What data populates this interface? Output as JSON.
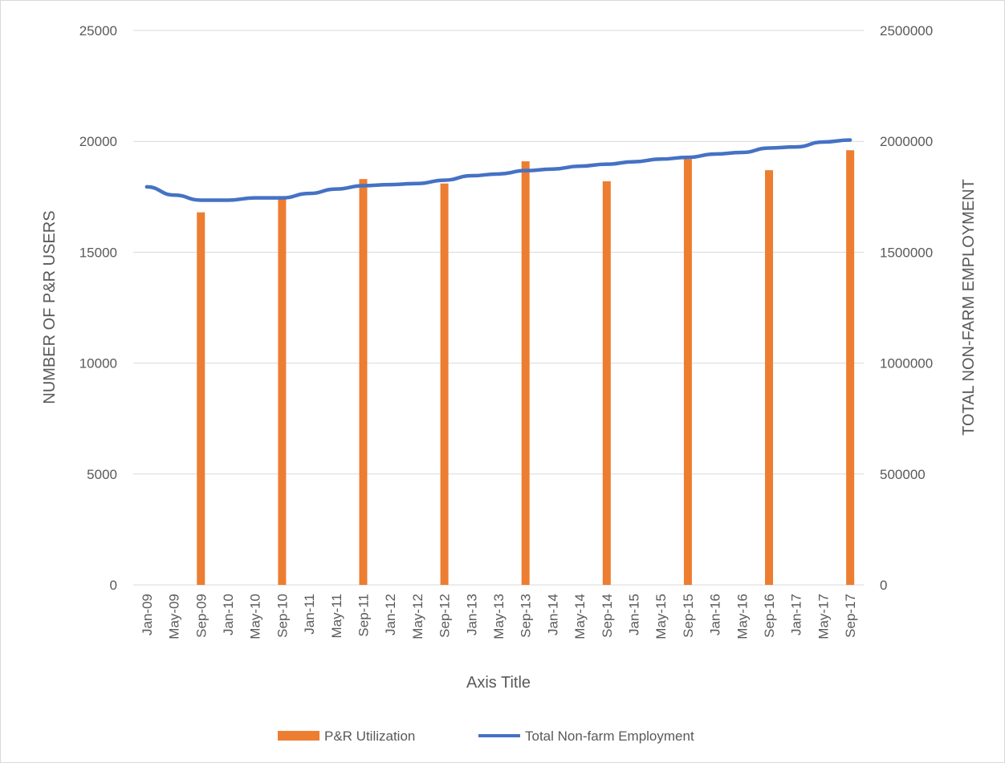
{
  "chart_data": {
    "type": "bar+line",
    "title": "",
    "xlabel": "Axis Title",
    "ylabel": "NUMBER OF P&R USERS",
    "y2label": "TOTAL NON-FARM EMPLOYMENT",
    "ylim": [
      0,
      25000
    ],
    "y2lim": [
      0,
      2500000
    ],
    "yticks": [
      "0",
      "5000",
      "10000",
      "15000",
      "20000",
      "25000"
    ],
    "y2ticks": [
      "0",
      "500000",
      "1000000",
      "1500000",
      "2000000",
      "2500000"
    ],
    "grid": true,
    "legend_position": "bottom",
    "x_tick_labels": [
      "Jan-09",
      "May-09",
      "Sep-09",
      "Jan-10",
      "May-10",
      "Sep-10",
      "Jan-11",
      "May-11",
      "Sep-11",
      "Jan-12",
      "May-12",
      "Sep-12",
      "Jan-13",
      "May-13",
      "Sep-13",
      "Jan-14",
      "May-14",
      "Sep-14",
      "Jan-15",
      "May-15",
      "Sep-15",
      "Jan-16",
      "May-16",
      "Sep-16",
      "Jan-17",
      "May-17",
      "Sep-17"
    ],
    "bar_series": {
      "name": "P&R Utilization",
      "color": "#ed7d31",
      "points": [
        {
          "x": "Sep-09",
          "value": 16800
        },
        {
          "x": "Sep-10",
          "value": 17400
        },
        {
          "x": "Sep-11",
          "value": 18300
        },
        {
          "x": "Sep-12",
          "value": 18100
        },
        {
          "x": "Sep-13",
          "value": 19100
        },
        {
          "x": "Sep-14",
          "value": 18200
        },
        {
          "x": "Sep-15",
          "value": 19200
        },
        {
          "x": "Sep-16",
          "value": 18700
        },
        {
          "x": "Sep-17",
          "value": 19600
        }
      ]
    },
    "line_series": {
      "name": "Total Non-farm Employment",
      "color": "#4472c4",
      "axis": "secondary",
      "points": [
        {
          "x": "Jan-09",
          "value": 1795000
        },
        {
          "x": "May-09",
          "value": 1758000
        },
        {
          "x": "Sep-09",
          "value": 1735000
        },
        {
          "x": "Jan-10",
          "value": 1735000
        },
        {
          "x": "May-10",
          "value": 1745000
        },
        {
          "x": "Sep-10",
          "value": 1745000
        },
        {
          "x": "Jan-11",
          "value": 1765000
        },
        {
          "x": "May-11",
          "value": 1785000
        },
        {
          "x": "Sep-11",
          "value": 1800000
        },
        {
          "x": "Jan-12",
          "value": 1805000
        },
        {
          "x": "May-12",
          "value": 1810000
        },
        {
          "x": "Sep-12",
          "value": 1825000
        },
        {
          "x": "Jan-13",
          "value": 1845000
        },
        {
          "x": "May-13",
          "value": 1853000
        },
        {
          "x": "Sep-13",
          "value": 1868000
        },
        {
          "x": "Jan-14",
          "value": 1875000
        },
        {
          "x": "May-14",
          "value": 1888000
        },
        {
          "x": "Sep-14",
          "value": 1897000
        },
        {
          "x": "Jan-15",
          "value": 1908000
        },
        {
          "x": "May-15",
          "value": 1920000
        },
        {
          "x": "Sep-15",
          "value": 1928000
        },
        {
          "x": "Jan-16",
          "value": 1943000
        },
        {
          "x": "May-16",
          "value": 1950000
        },
        {
          "x": "Sep-16",
          "value": 1970000
        },
        {
          "x": "Jan-17",
          "value": 1975000
        },
        {
          "x": "May-17",
          "value": 1997000
        },
        {
          "x": "Sep-17",
          "value": 2006000
        }
      ]
    }
  }
}
